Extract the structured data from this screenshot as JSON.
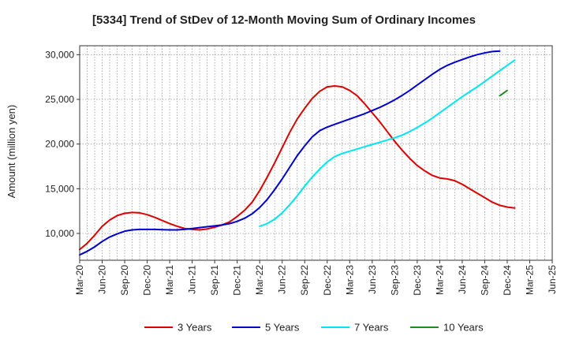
{
  "chart_data": {
    "type": "line",
    "title": "[5334]  Trend of StDev of 12-Month Moving Sum of Ordinary Incomes",
    "xlabel": "",
    "ylabel": "Amount (million yen)",
    "ylim": [
      7000,
      31000
    ],
    "yticks": [
      10000,
      15000,
      20000,
      25000,
      30000
    ],
    "ytick_labels": [
      "10,000",
      "15,000",
      "20,000",
      "25,000",
      "30,000"
    ],
    "grid": true,
    "legend_position": "bottom",
    "x_categories": [
      "Mar-20",
      "Jun-20",
      "Sep-20",
      "Dec-20",
      "Mar-21",
      "Jun-21",
      "Sep-21",
      "Dec-21",
      "Mar-22",
      "Jun-22",
      "Sep-22",
      "Dec-22",
      "Mar-23",
      "Jun-23",
      "Sep-23",
      "Dec-23",
      "Mar-24",
      "Jun-24",
      "Sep-24",
      "Dec-24",
      "Mar-25",
      "Jun-25"
    ],
    "series": [
      {
        "name": "3 Years",
        "color": "#dd0000",
        "start_index": 0,
        "values": [
          8200,
          8900,
          9800,
          10800,
          11500,
          12000,
          12250,
          12350,
          12300,
          12100,
          11800,
          11450,
          11100,
          10800,
          10550,
          10450,
          10400,
          10500,
          10700,
          10950,
          11300,
          11900,
          12600,
          13500,
          14800,
          16300,
          17900,
          19600,
          21300,
          22800,
          24000,
          25100,
          25900,
          26400,
          26500,
          26400,
          26000,
          25400,
          24500,
          23500,
          22500,
          21400,
          20300,
          19300,
          18400,
          17600,
          17000,
          16500,
          16200,
          16100,
          15900,
          15500,
          15000,
          14500,
          14000,
          13500,
          13150,
          12950,
          12850
        ]
      },
      {
        "name": "5 Years",
        "color": "#0000cc",
        "start_index": 0,
        "values": [
          7600,
          8000,
          8500,
          9100,
          9600,
          9950,
          10250,
          10400,
          10450,
          10450,
          10450,
          10420,
          10400,
          10400,
          10450,
          10550,
          10650,
          10750,
          10850,
          10950,
          11100,
          11350,
          11700,
          12200,
          12900,
          13800,
          14900,
          16100,
          17400,
          18700,
          19800,
          20800,
          21500,
          21900,
          22200,
          22500,
          22800,
          23100,
          23400,
          23750,
          24100,
          24500,
          24950,
          25450,
          26000,
          26600,
          27200,
          27800,
          28350,
          28800,
          29150,
          29450,
          29750,
          30000,
          30200,
          30350,
          30400
        ]
      },
      {
        "name": "7 Years",
        "color": "#00e5ee",
        "start_index": 24,
        "values": [
          10800,
          11100,
          11600,
          12300,
          13200,
          14200,
          15300,
          16300,
          17200,
          18000,
          18600,
          18950,
          19200,
          19450,
          19700,
          19950,
          20200,
          20450,
          20700,
          21000,
          21400,
          21850,
          22350,
          22900,
          23500,
          24100,
          24700,
          25300,
          25850,
          26400,
          27000,
          27600,
          28200,
          28800,
          29400
        ]
      },
      {
        "name": "10 Years",
        "color": "#228b22",
        "start_index": 56,
        "values": [
          25400,
          26000
        ]
      }
    ]
  }
}
